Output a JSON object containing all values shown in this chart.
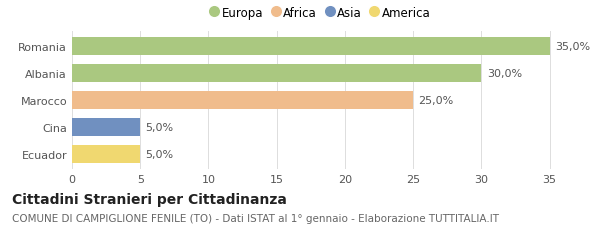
{
  "categories": [
    "Romania",
    "Albania",
    "Marocco",
    "Cina",
    "Ecuador"
  ],
  "values": [
    35.0,
    30.0,
    25.0,
    5.0,
    5.0
  ],
  "colors": [
    "#aac880",
    "#aac880",
    "#f0bc8c",
    "#7090c0",
    "#f0d870"
  ],
  "bar_labels": [
    "35,0%",
    "30,0%",
    "25,0%",
    "5,0%",
    "5,0%"
  ],
  "legend_labels": [
    "Europa",
    "Africa",
    "Asia",
    "America"
  ],
  "legend_colors": [
    "#aac880",
    "#f0bc8c",
    "#7090c0",
    "#f0d870"
  ],
  "xlim": [
    0,
    36.5
  ],
  "xticks": [
    0,
    5,
    10,
    15,
    20,
    25,
    30,
    35
  ],
  "title": "Cittadini Stranieri per Cittadinanza",
  "subtitle": "COMUNE DI CAMPIGLIONE FENILE (TO) - Dati ISTAT al 1° gennaio - Elaborazione TUTTITALIA.IT",
  "title_fontsize": 10,
  "subtitle_fontsize": 7.5,
  "label_fontsize": 8,
  "tick_fontsize": 8,
  "legend_fontsize": 8.5,
  "background_color": "#ffffff"
}
